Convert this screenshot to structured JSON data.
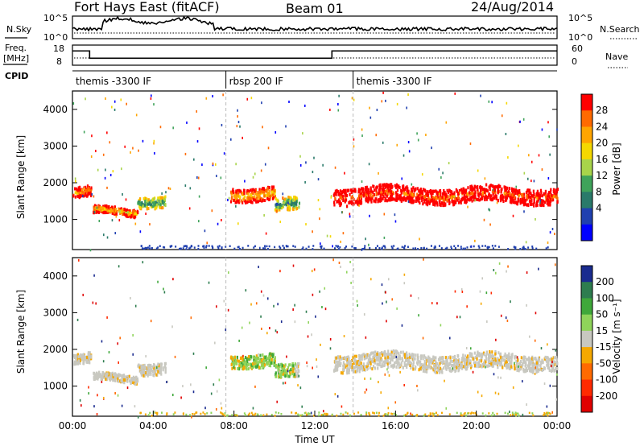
{
  "header": {
    "station": "Fort Hays East (fitACF)",
    "beam": "Beam 01",
    "date": "24/Aug/2014"
  },
  "labels": {
    "nsky": "N.Sky",
    "nsearch": "N.Search",
    "freq_line1": "Freq.",
    "freq_line2": "[MHz]",
    "nave": "Nave",
    "cpid": "CPID"
  },
  "small_axes": {
    "nsky_left_ticks": [
      "10^5",
      "10^0"
    ],
    "nsearch_right_ticks": [
      "10^5",
      "10^0"
    ],
    "freq_left_ticks": [
      "18",
      "8"
    ],
    "nave_right_ticks": [
      "60",
      "0"
    ]
  },
  "cpid_segments": [
    {
      "label": "themis -3300 IF",
      "start_hour": 0.0,
      "end_hour": 7.6
    },
    {
      "label": "rbsp 200 IF",
      "start_hour": 7.6,
      "end_hour": 13.9
    },
    {
      "label": "themis -3300 IF",
      "start_hour": 13.9,
      "end_hour": 24.0
    }
  ],
  "freq_trace": [
    {
      "start_hour": 0.0,
      "end_hour": 0.85,
      "mhz": 15.5
    },
    {
      "start_hour": 0.85,
      "end_hour": 12.85,
      "mhz": 11.2
    },
    {
      "start_hour": 12.85,
      "end_hour": 24.0,
      "mhz": 15.5
    }
  ],
  "chart_data": {
    "type": "heatmap",
    "xlabel": "Time UT",
    "x_ticks": [
      "00:00",
      "04:00",
      "08:00",
      "12:00",
      "16:00",
      "20:00",
      "00:00"
    ],
    "xlim_hours": [
      0,
      24
    ],
    "panels": [
      {
        "name": "power",
        "ylabel": "Slant Range [km]",
        "yticks": [
          1000,
          2000,
          3000,
          4000
        ],
        "ylim": [
          180,
          4500
        ],
        "colorbar": {
          "label": "Power [dB]",
          "tick_labels": [
            "28",
            "24",
            "20",
            "16",
            "12",
            "8",
            "4"
          ],
          "colors": [
            "#ff0000",
            "#ff6a00",
            "#ffa500",
            "#f5d800",
            "#a8d44a",
            "#3fa35a",
            "#2a7a6a",
            "#2040b0",
            "#0000ff"
          ]
        },
        "bands": [
          {
            "hour_start": 0.0,
            "hour_end": 0.9,
            "center_km": 1750,
            "width_km": 280,
            "level": 6
          },
          {
            "hour_start": 1.0,
            "hour_end": 3.2,
            "center_km": 1250,
            "width_km": 200,
            "level": 5
          },
          {
            "hour_start": 3.2,
            "hour_end": 4.6,
            "center_km": 1550,
            "width_km": 300,
            "level": 2
          },
          {
            "hour_start": 7.8,
            "hour_end": 10.0,
            "center_km": 1750,
            "width_km": 350,
            "level": 5
          },
          {
            "hour_start": 10.0,
            "hour_end": 11.2,
            "center_km": 1400,
            "width_km": 350,
            "level": 2
          },
          {
            "hour_start": 12.9,
            "hour_end": 16.5,
            "center_km": 1700,
            "width_km": 450,
            "level": 7
          },
          {
            "hour_start": 16.5,
            "hour_end": 24.0,
            "center_km": 1700,
            "width_km": 420,
            "level": 7
          }
        ]
      },
      {
        "name": "velocity",
        "ylabel": "Slant Range [km]",
        "yticks": [
          1000,
          2000,
          3000,
          4000
        ],
        "ylim": [
          180,
          4500
        ],
        "colorbar": {
          "label": "Velocity [m s⁻¹]",
          "tick_labels": [
            "200",
            "100",
            "50",
            "15",
            "-15",
            "-50",
            "-100",
            "-200"
          ],
          "colors": [
            "#1a2b8f",
            "#2e7d4f",
            "#3fa83a",
            "#8fd45a",
            "#c8c8c0",
            "#f5a800",
            "#ff6a00",
            "#ff2a00",
            "#e00000"
          ]
        }
      }
    ]
  }
}
